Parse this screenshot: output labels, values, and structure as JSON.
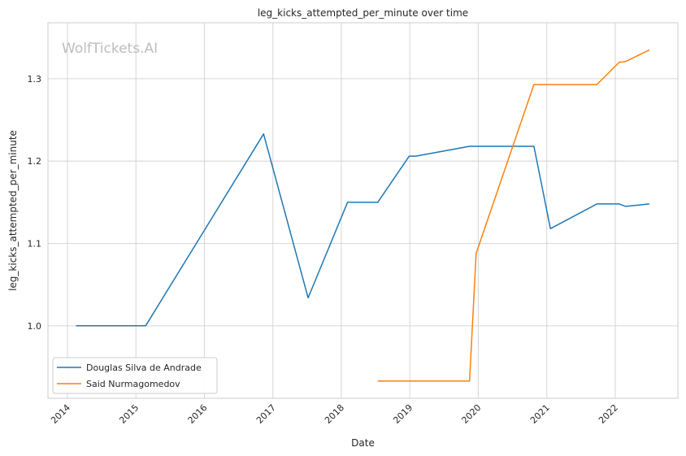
{
  "chart_data": {
    "type": "line",
    "title": "leg_kicks_attempted_per_minute over time",
    "xlabel": "Date",
    "ylabel": "leg_kicks_attempted_per_minute",
    "watermark": "WolfTickets.AI",
    "x_axis_type": "date",
    "xlim": [
      "2013-09-19",
      "2022-12-01"
    ],
    "ylim": [
      0.912,
      1.368
    ],
    "x_ticks": [
      "2014",
      "2015",
      "2016",
      "2017",
      "2018",
      "2019",
      "2020",
      "2021",
      "2022"
    ],
    "y_ticks": [
      "1.0",
      "1.1",
      "1.2",
      "1.3"
    ],
    "grid": true,
    "legend_position": "lower-left",
    "series": [
      {
        "name": "Douglas Silva de Andrade",
        "color": "#1f77b4",
        "points": [
          {
            "x": "2014-02-15",
            "y": 1.0
          },
          {
            "x": "2015-02-22",
            "y": 1.0
          },
          {
            "x": "2016-11-12",
            "y": 1.233
          },
          {
            "x": "2017-07-08",
            "y": 1.034
          },
          {
            "x": "2018-02-03",
            "y": 1.15
          },
          {
            "x": "2018-07-14",
            "y": 1.15
          },
          {
            "x": "2018-12-29",
            "y": 1.206
          },
          {
            "x": "2019-02-02",
            "y": 1.206
          },
          {
            "x": "2019-11-16",
            "y": 1.218
          },
          {
            "x": "2020-10-24",
            "y": 1.218
          },
          {
            "x": "2021-01-20",
            "y": 1.118
          },
          {
            "x": "2021-09-25",
            "y": 1.148
          },
          {
            "x": "2022-01-22",
            "y": 1.148
          },
          {
            "x": "2022-02-26",
            "y": 1.145
          },
          {
            "x": "2022-07-02",
            "y": 1.148
          }
        ]
      },
      {
        "name": "Said Nurmagomedov",
        "color": "#ff7f0e",
        "points": [
          {
            "x": "2018-07-14",
            "y": 0.933
          },
          {
            "x": "2019-11-16",
            "y": 0.933
          },
          {
            "x": "2019-12-21",
            "y": 1.088
          },
          {
            "x": "2020-10-24",
            "y": 1.293
          },
          {
            "x": "2021-09-25",
            "y": 1.293
          },
          {
            "x": "2022-01-22",
            "y": 1.32
          },
          {
            "x": "2022-02-26",
            "y": 1.321
          },
          {
            "x": "2022-07-02",
            "y": 1.335
          }
        ]
      }
    ]
  }
}
